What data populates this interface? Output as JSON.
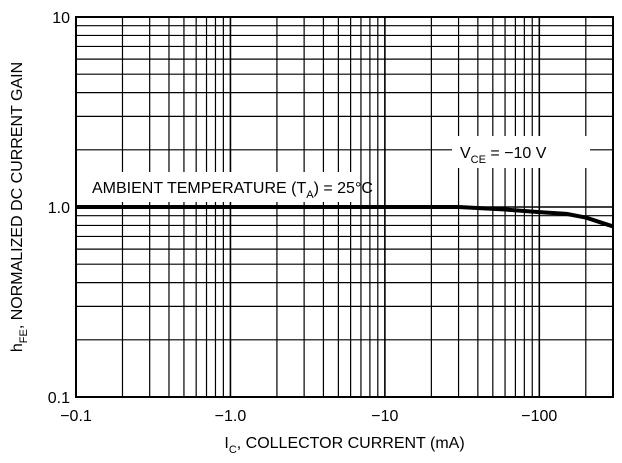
{
  "chart_data": {
    "type": "line",
    "xscale": "log",
    "yscale": "log",
    "xlim": [
      -0.1,
      -300
    ],
    "ylim": [
      0.1,
      10
    ],
    "x_ticks": [
      "−0.1",
      "−1.0",
      "−10",
      "−100"
    ],
    "y_ticks": [
      "10",
      "1.0",
      "0.1"
    ],
    "xlabel": {
      "main": "I",
      "sub": "C",
      "rest": ", COLLECTOR CURRENT (mA)"
    },
    "ylabel": {
      "main": "h",
      "sub": "FE",
      "rest": ", NORMALIZED DC CURRENT GAIN"
    },
    "grid": true,
    "annotations": {
      "vce": {
        "main": "V",
        "sub": "CE",
        "rest": " = −10 V"
      },
      "ambient": {
        "main": "AMBIENT TEMPERATURE (T",
        "sub": "A",
        "rest": ") = 25°C"
      }
    },
    "series": [
      {
        "x": [
          -0.1,
          -1,
          -10,
          -30,
          -60,
          -100,
          -150,
          -200,
          -300
        ],
        "y": [
          1.0,
          1.0,
          1.0,
          1.0,
          0.97,
          0.94,
          0.92,
          0.88,
          0.79
        ]
      }
    ],
    "colors": {
      "line": "#000000",
      "grid": "#000000",
      "background": "#ffffff"
    }
  }
}
